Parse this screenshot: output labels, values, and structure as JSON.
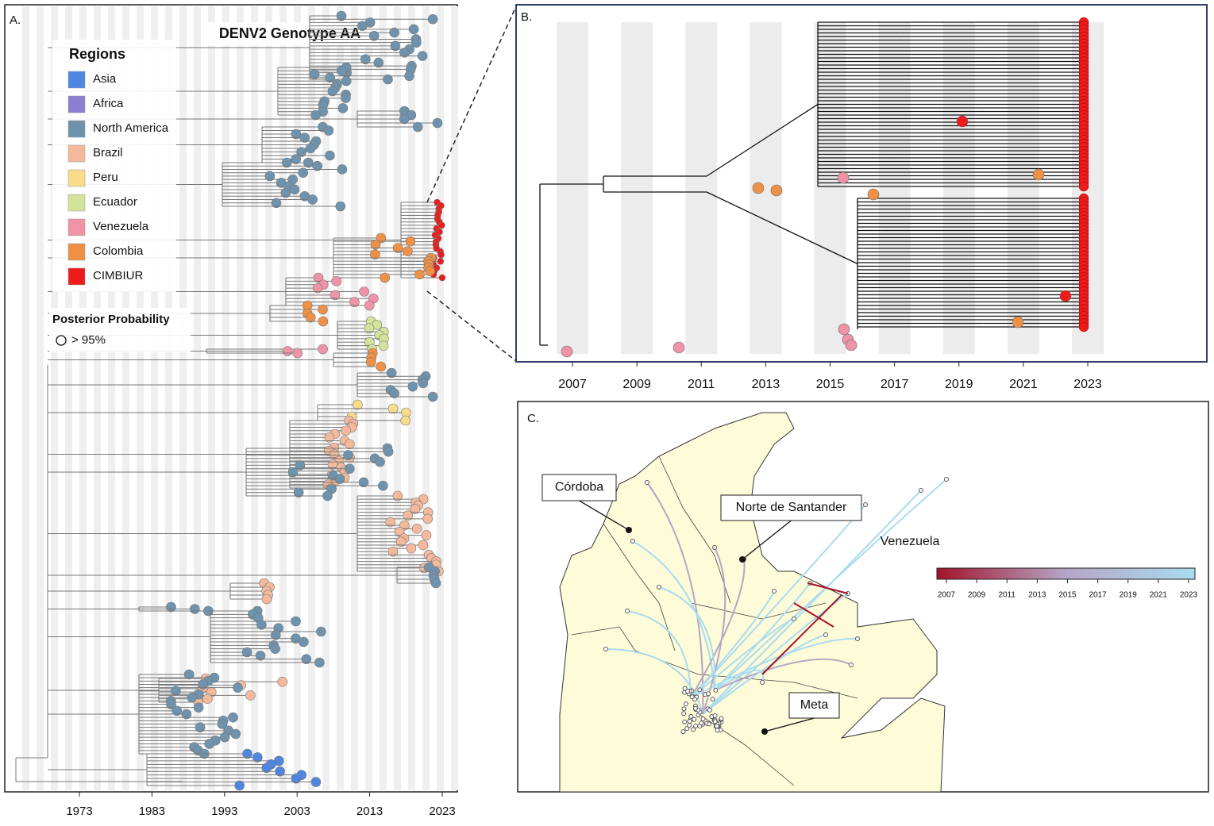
{
  "panel_a": {
    "label": "A.",
    "title": "DENV2 Genotype AA",
    "legend": {
      "title": "Regions",
      "items": [
        {
          "name": "Asia",
          "color": "#4f86e0"
        },
        {
          "name": "Africa",
          "color": "#8a7fd0"
        },
        {
          "name": "North America",
          "color": "#6f93ad"
        },
        {
          "name": "Brazil",
          "color": "#f4b99c"
        },
        {
          "name": "Peru",
          "color": "#f8dc8a"
        },
        {
          "name": "Ecuador",
          "color": "#d3e39a"
        },
        {
          "name": "Venezuela",
          "color": "#ee93a8"
        },
        {
          "name": "Colombia",
          "color": "#ee9146"
        },
        {
          "name": "CIMBIUR",
          "color": "#ee1b1b"
        }
      ]
    },
    "posterior": {
      "title": "Posterior Probability",
      "item": "> 95%"
    },
    "xticks": [
      1973,
      1983,
      1993,
      2003,
      2013,
      2023
    ]
  },
  "panel_b": {
    "label": "B.",
    "xticks": [
      2007,
      2009,
      2011,
      2013,
      2015,
      2017,
      2019,
      2021,
      2023
    ]
  },
  "panel_c": {
    "label": "C.",
    "places": [
      "Córdoba",
      "Norte de Santander",
      "Venezuela",
      "Meta"
    ],
    "colorbar": {
      "colors": [
        "#a3122a",
        "#b6a5c6",
        "#a9dcef"
      ],
      "ticks": [
        2007,
        2009,
        2011,
        2013,
        2015,
        2017,
        2019,
        2021,
        2023
      ]
    }
  }
}
